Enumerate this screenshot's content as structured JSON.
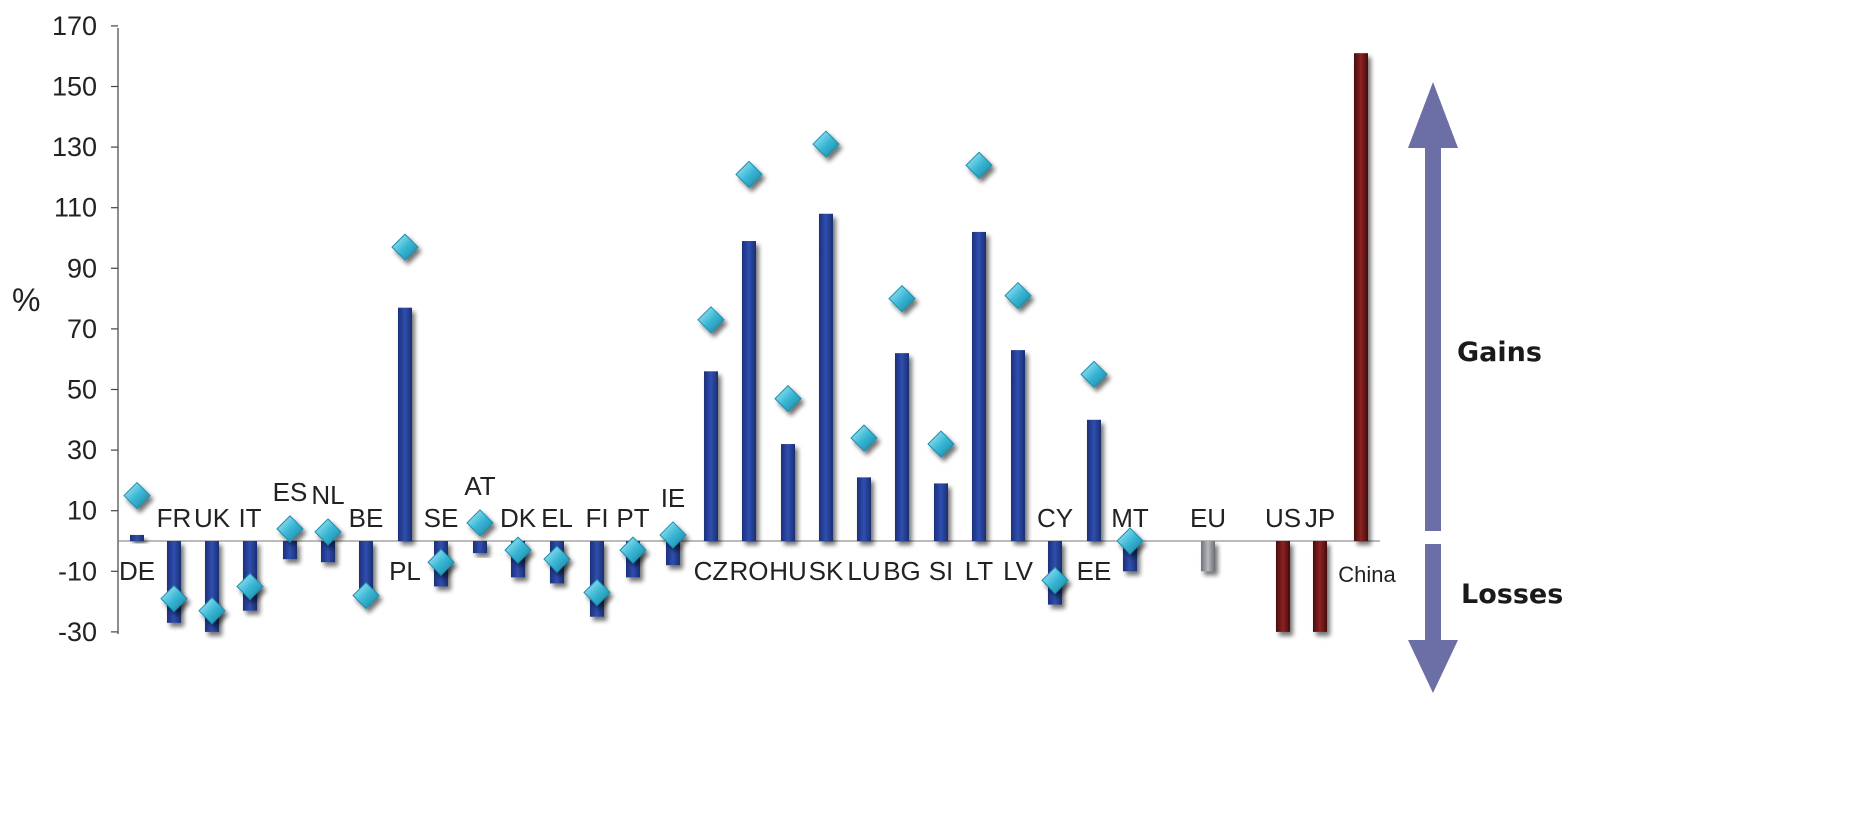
{
  "chart_data": {
    "type": "bar",
    "ylabel": "%",
    "ylim": [
      -30,
      170
    ],
    "yticks": [
      170,
      150,
      130,
      110,
      90,
      70,
      50,
      30,
      10,
      -10,
      -30
    ],
    "grid": false,
    "categories": [
      "DE",
      "FR",
      "UK",
      "IT",
      "ES",
      "NL",
      "BE",
      "PL",
      "SE",
      "AT",
      "DK",
      "EL",
      "FI",
      "PT",
      "IE",
      "CZ",
      "RO",
      "HU",
      "SK",
      "LU",
      "BG",
      "SI",
      "LT",
      "LV",
      "CY",
      "EE",
      "MT",
      "EU",
      "US",
      "JP",
      "China"
    ],
    "label_position": [
      "below",
      "above",
      "above",
      "above",
      "above",
      "above",
      "above",
      "below",
      "above",
      "above",
      "above",
      "above",
      "above",
      "above",
      "above",
      "below",
      "below",
      "below",
      "below",
      "below",
      "below",
      "below",
      "below",
      "below",
      "above",
      "below",
      "above",
      "above",
      "above",
      "above",
      "below"
    ],
    "series": [
      {
        "type": "bar",
        "values": [
          2,
          -27,
          -30,
          -23,
          -6,
          -7,
          -17,
          77,
          -15,
          -4,
          -12,
          -14,
          -25,
          -12,
          -8,
          56,
          99,
          32,
          108,
          21,
          62,
          19,
          102,
          63,
          -21,
          40,
          -10,
          -10,
          -30,
          -30,
          161
        ],
        "colors_by_group": {
          "member_states": "#253f96",
          "EU": "#8a8d91",
          "third_countries": "#6b1616"
        }
      },
      {
        "type": "marker",
        "values": [
          15,
          -19,
          -23,
          -15,
          4,
          3,
          -18,
          97,
          -7,
          6,
          -3,
          -6,
          -17,
          -3,
          2,
          73,
          121,
          47,
          131,
          34,
          80,
          32,
          124,
          81,
          -13,
          55,
          0,
          null,
          null,
          null,
          null
        ],
        "color": "#3ab8d6"
      }
    ]
  },
  "annotations": {
    "gains": "Gains",
    "losses": "Losses",
    "arrow_color": "#6b6fa6"
  }
}
